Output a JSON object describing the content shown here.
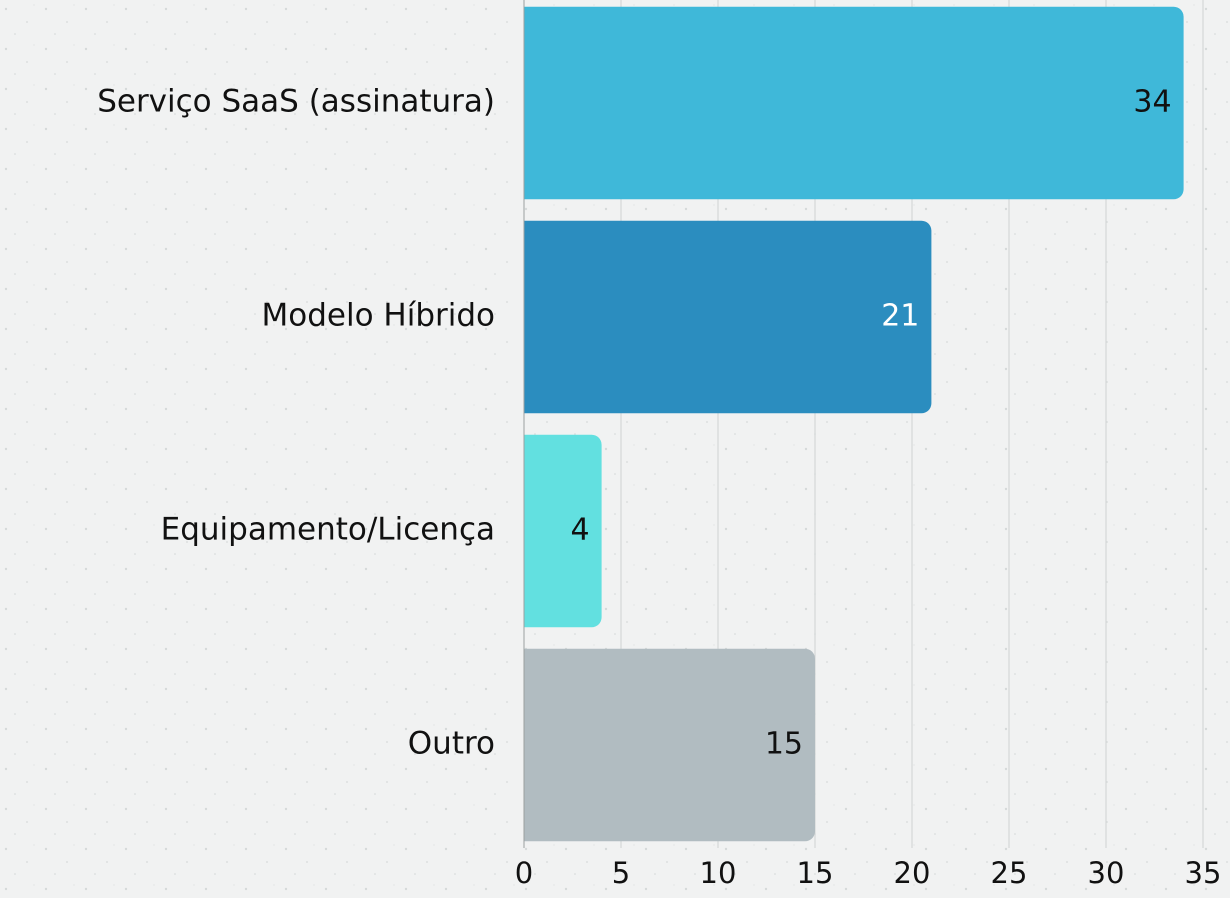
{
  "chart_data": {
    "type": "bar",
    "orientation": "horizontal",
    "categories": [
      "Serviço SaaS (assinatura)",
      "Modelo Híbrido",
      "Equipamento/Licença",
      "Outro"
    ],
    "values": [
      34,
      21,
      4,
      15
    ],
    "colors": [
      "#3fb8d9",
      "#2b8dbf",
      "#62e0e0",
      "#b1bcc1"
    ],
    "xlim": [
      0,
      35
    ],
    "xticks": [
      0,
      5,
      10,
      15,
      20,
      25,
      30,
      35
    ],
    "grid": true
  }
}
